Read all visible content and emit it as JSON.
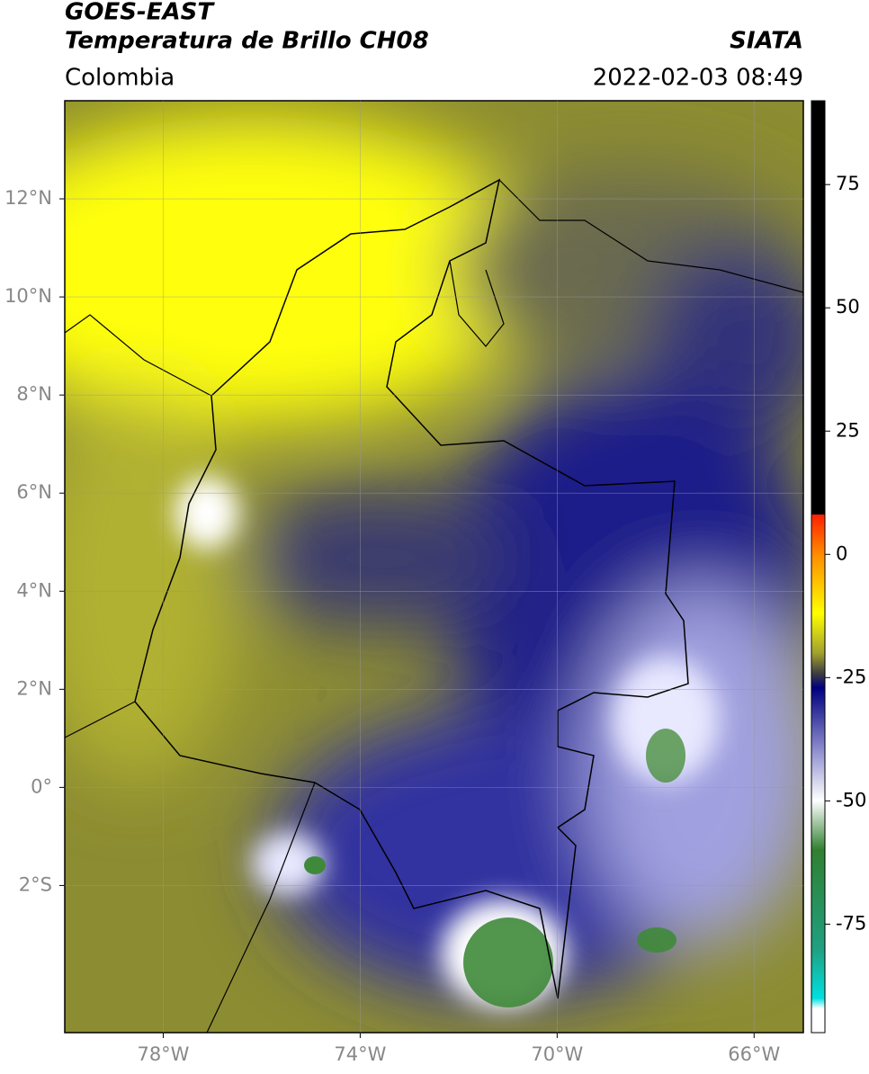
{
  "header": {
    "title": "GOES-EAST",
    "subtitle": "Temperatura de Brillo CH08",
    "source": "SIATA",
    "region": "Colombia",
    "datetime": "2022-02-03 08:49"
  },
  "map": {
    "xlim": [
      -80,
      -65
    ],
    "ylim": [
      -5,
      14
    ],
    "xticks": [
      {
        "value": -78,
        "label": "78°W"
      },
      {
        "value": -74,
        "label": "74°W"
      },
      {
        "value": -70,
        "label": "70°W"
      },
      {
        "value": -66,
        "label": "66°W"
      }
    ],
    "yticks": [
      {
        "value": 12,
        "label": "12°N"
      },
      {
        "value": 10,
        "label": "10°N"
      },
      {
        "value": 8,
        "label": "8°N"
      },
      {
        "value": 6,
        "label": "6°N"
      },
      {
        "value": 4,
        "label": "4°N"
      },
      {
        "value": 2,
        "label": "2°N"
      },
      {
        "value": 0,
        "label": "0°"
      },
      {
        "value": -2,
        "label": "2°S"
      }
    ]
  },
  "colorbar": {
    "lim": [
      -97,
      92
    ],
    "ticks": [
      75,
      50,
      25,
      0,
      -25,
      -50,
      -75
    ]
  }
}
